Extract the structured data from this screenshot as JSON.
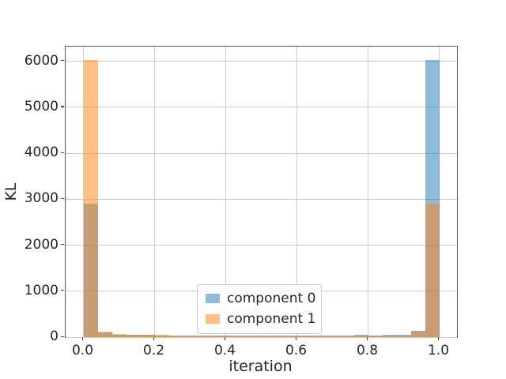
{
  "figure": {
    "background": "#ffffff"
  },
  "chart_data": {
    "type": "bar",
    "subtype": "overlaid-histogram",
    "title": "",
    "xlabel": "iteration",
    "ylabel": "KL",
    "xlim": [
      -0.05,
      1.05
    ],
    "ylim": [
      0,
      6320
    ],
    "grid": true,
    "grid_color": "#cccccc",
    "xticks": [
      0.0,
      0.2,
      0.4,
      0.6,
      0.8,
      1.0
    ],
    "xtick_labels": [
      "0.0",
      "0.2",
      "0.4",
      "0.6",
      "0.8",
      "1.0"
    ],
    "yticks": [
      0,
      1000,
      2000,
      3000,
      4000,
      5000,
      6000
    ],
    "ytick_labels": [
      "0",
      "1000",
      "2000",
      "3000",
      "4000",
      "5000",
      "6000"
    ],
    "bin_width": 0.04,
    "bin_starts": [
      0.0,
      0.04,
      0.08,
      0.12,
      0.16,
      0.2,
      0.24,
      0.28,
      0.32,
      0.36,
      0.4,
      0.44,
      0.48,
      0.52,
      0.56,
      0.6,
      0.64,
      0.68,
      0.72,
      0.76,
      0.8,
      0.84,
      0.88,
      0.92,
      0.96
    ],
    "series": [
      {
        "name": "component 0",
        "base_color": "#1f77b4",
        "fill": "rgba(31,119,180,0.5)",
        "values": [
          2900,
          110,
          55,
          50,
          45,
          40,
          35,
          30,
          28,
          30,
          28,
          28,
          30,
          32,
          28,
          28,
          30,
          32,
          35,
          50,
          38,
          50,
          45,
          130,
          6030
        ]
      },
      {
        "name": "component 1",
        "base_color": "#ff7f0e",
        "fill": "rgba(255,127,14,0.5)",
        "values": [
          6030,
          125,
          65,
          60,
          55,
          50,
          42,
          35,
          30,
          35,
          30,
          28,
          35,
          35,
          30,
          28,
          30,
          30,
          35,
          30,
          35,
          30,
          42,
          130,
          2900
        ]
      }
    ],
    "legend": {
      "position": "lower center",
      "entries": [
        {
          "label": "component 0",
          "fill": "rgba(31,119,180,0.5)"
        },
        {
          "label": "component 1",
          "fill": "rgba(255,127,14,0.5)"
        }
      ]
    }
  }
}
